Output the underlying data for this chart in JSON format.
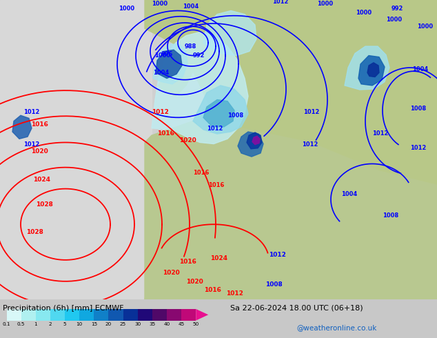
{
  "title_left": "Precipitation (6h) [mm] ECMWF",
  "title_right": "Sa 22-06-2024 18.00 UTC (06+18)",
  "credit": "@weatheronline.co.uk",
  "colorbar_values": [
    "0.1",
    "0.5",
    "1",
    "2",
    "5",
    "10",
    "15",
    "20",
    "25",
    "30",
    "35",
    "40",
    "45",
    "50"
  ],
  "colorbar_colors": [
    "#d8f8f8",
    "#b0f0f0",
    "#88e8f0",
    "#50d8f0",
    "#20c8f0",
    "#10a8e0",
    "#1080c8",
    "#1058b0",
    "#083098",
    "#200878",
    "#500868",
    "#880870",
    "#c00878",
    "#e81090"
  ],
  "bg_color": "#c8c8c8",
  "land_color_west": "#d0d0d0",
  "land_color_europe": "#b8c890",
  "sea_color": "#c8d8e8",
  "prec_colors": {
    "lightest": "#c8f0f0",
    "light": "#90dce8",
    "medium": "#50b8d8",
    "strong": "#2070b8",
    "heavy": "#0840a0",
    "intense": "#4c1480",
    "extreme": "#a01890"
  }
}
